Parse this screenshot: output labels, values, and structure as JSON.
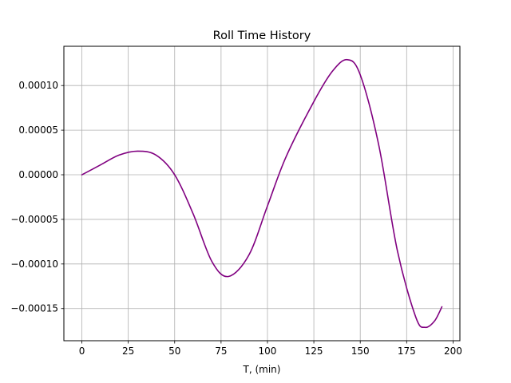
{
  "chart_data": {
    "type": "line",
    "title": "Roll Time History",
    "xlabel": "T, (min)",
    "ylabel": "",
    "xlim": [
      -9.7,
      203.7
    ],
    "ylim": [
      -0.000186,
      0.000144
    ],
    "xticks": [
      0,
      25,
      50,
      75,
      100,
      125,
      150,
      175,
      200
    ],
    "xtick_labels": [
      "0",
      "25",
      "50",
      "75",
      "100",
      "125",
      "150",
      "175",
      "200"
    ],
    "yticks": [
      -0.00015,
      -0.0001,
      -5e-05,
      0.0,
      5e-05,
      0.0001
    ],
    "ytick_labels": [
      "−0.00015",
      "−0.00010",
      "−0.00005",
      "0.00000",
      "0.00005",
      "0.00010"
    ],
    "grid": true,
    "series": [
      {
        "color": "#800080",
        "x": [
          0,
          10,
          20,
          30,
          40,
          50,
          60,
          70,
          79,
          90,
          100,
          110,
          125,
          135,
          143,
          150,
          160,
          170,
          180,
          185,
          190,
          194
        ],
        "y": [
          0.0,
          1.1e-05,
          2.2e-05,
          2.65e-05,
          2.2e-05,
          0.0,
          -4.4e-05,
          -9.7e-05,
          -0.000114,
          -9e-05,
          -3.5e-05,
          2e-05,
          8.2e-05,
          0.000116,
          0.000129,
          0.000112,
          3.3e-05,
          -8.5e-05,
          -0.00016,
          -0.000171,
          -0.000164,
          -0.000148
        ]
      }
    ]
  }
}
